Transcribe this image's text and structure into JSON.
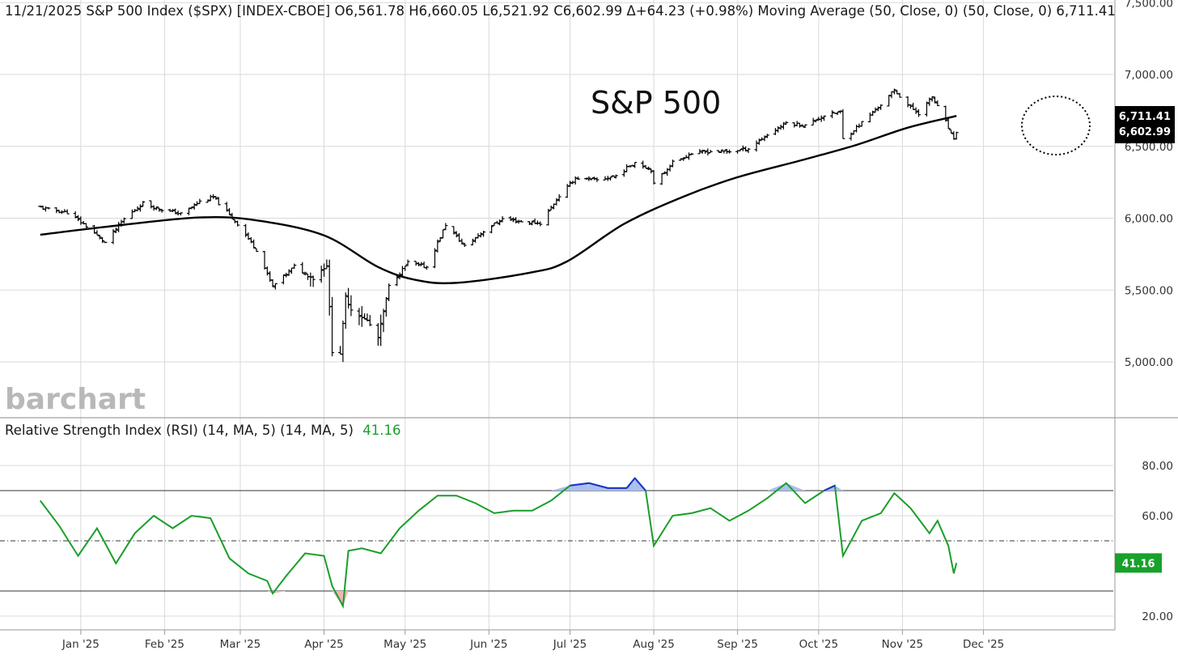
{
  "header": {
    "main": "11/21/2025 S&P 500 Index ($SPX) [INDEX-CBOE] O6,561.78 H6,660.05 L6,521.92 C6,602.99 Δ+64.23 (+0.98%) Moving Average (50, Close, 0)  (50, Close, 0) 6,711.41",
    "rsi_label": "Relative Strength Index (RSI) (14, MA, 5)  (14, MA, 5)",
    "rsi_value": "41.16"
  },
  "annotation": "S&P 500",
  "watermark": "barchart",
  "colors": {
    "rsi_line": "#1a9e2a",
    "overbought": "#1f2fd6",
    "overbought_fill": "#aabff0",
    "oversold": "#e21b1b",
    "oversold_fill": "#f2b5b5",
    "ma_line": "#000000",
    "bars": "#000000",
    "grid": "#d9d9d9"
  },
  "chart_data": [
    {
      "type": "ohlc",
      "title": "S&P 500 Index ($SPX)",
      "x_tick_labels": [
        "Jan '25",
        "Feb '25",
        "Mar '25",
        "Apr '25",
        "May '25",
        "Jun '25",
        "Jul '25",
        "Aug '25",
        "Sep '25",
        "Oct '25",
        "Nov '25",
        "Dec '25"
      ],
      "y_tick_labels": [
        "7,500.00",
        "7,000.00",
        "6,500.00",
        "6,000.00",
        "5,500.00",
        "5,000.00"
      ],
      "ylim": [
        4800,
        7500
      ],
      "grid": true,
      "series": [
        {
          "name": "S&P 500 Index ($SPX)",
          "x": [
            "2024-12-17",
            "2024-12-20",
            "2024-12-27",
            "2025-01-03",
            "2025-01-10",
            "2025-01-17",
            "2025-01-24",
            "2025-01-31",
            "2025-02-07",
            "2025-02-14",
            "2025-02-19",
            "2025-02-28",
            "2025-03-07",
            "2025-03-13",
            "2025-03-21",
            "2025-03-28",
            "2025-04-02",
            "2025-04-04",
            "2025-04-07",
            "2025-04-09",
            "2025-04-11",
            "2025-04-17",
            "2025-04-21",
            "2025-04-25",
            "2025-05-02",
            "2025-05-09",
            "2025-05-16",
            "2025-05-23",
            "2025-05-30",
            "2025-06-06",
            "2025-06-13",
            "2025-06-20",
            "2025-06-27",
            "2025-07-03",
            "2025-07-11",
            "2025-07-18",
            "2025-07-25",
            "2025-07-31",
            "2025-08-01",
            "2025-08-08",
            "2025-08-15",
            "2025-08-22",
            "2025-08-29",
            "2025-09-05",
            "2025-09-12",
            "2025-09-19",
            "2025-09-26",
            "2025-10-03",
            "2025-10-09",
            "2025-10-10",
            "2025-10-17",
            "2025-10-24",
            "2025-10-29",
            "2025-11-04",
            "2025-11-07",
            "2025-11-12",
            "2025-11-17",
            "2025-11-20",
            "2025-11-21"
          ],
          "close": [
            6075,
            6060,
            6040,
            5945,
            5830,
            5995,
            6105,
            6060,
            6030,
            6115,
            6145,
            5960,
            5780,
            5525,
            5665,
            5580,
            5675,
            5075,
            5060,
            5455,
            5365,
            5285,
            5170,
            5525,
            5690,
            5660,
            5955,
            5805,
            5910,
            5995,
            5975,
            5965,
            6155,
            6280,
            6265,
            6295,
            6390,
            6340,
            6235,
            6390,
            6450,
            6465,
            6465,
            6485,
            6580,
            6665,
            6645,
            6715,
            6740,
            6550,
            6665,
            6790,
            6890,
            6770,
            6730,
            6845,
            6670,
            6540,
            6603
          ]
        },
        {
          "name": "Moving Average (50, Close, 0)",
          "x": [
            "2024-12-17",
            "2025-01-15",
            "2025-02-14",
            "2025-03-07",
            "2025-04-01",
            "2025-04-21",
            "2025-05-05",
            "2025-05-20",
            "2025-06-16",
            "2025-06-30",
            "2025-07-21",
            "2025-08-12",
            "2025-09-01",
            "2025-09-25",
            "2025-10-15",
            "2025-11-03",
            "2025-11-21"
          ],
          "y": [
            5885,
            5950,
            6005,
            5985,
            5880,
            5660,
            5570,
            5550,
            5620,
            5700,
            5960,
            6150,
            6285,
            6405,
            6510,
            6630,
            6711.41
          ]
        }
      ],
      "last_price_tags": [
        {
          "value": "6,711.41"
        },
        {
          "value": "6,602.99"
        }
      ]
    },
    {
      "type": "line",
      "title": "Relative Strength Index (RSI) (14, MA, 5)",
      "y_tick_labels": [
        "80.00",
        "60.00",
        "20.00"
      ],
      "ylim": [
        20,
        80
      ],
      "reference_lines": [
        70,
        50,
        30
      ],
      "last_value": "41.16",
      "x": [
        "2024-12-17",
        "2024-12-24",
        "2024-12-31",
        "2025-01-07",
        "2025-01-14",
        "2025-01-21",
        "2025-01-28",
        "2025-02-04",
        "2025-02-11",
        "2025-02-18",
        "2025-02-25",
        "2025-03-04",
        "2025-03-11",
        "2025-03-13",
        "2025-03-18",
        "2025-03-25",
        "2025-04-01",
        "2025-04-04",
        "2025-04-08",
        "2025-04-10",
        "2025-04-15",
        "2025-04-22",
        "2025-04-29",
        "2025-05-06",
        "2025-05-13",
        "2025-05-20",
        "2025-05-27",
        "2025-06-03",
        "2025-06-10",
        "2025-06-17",
        "2025-06-24",
        "2025-07-01",
        "2025-07-08",
        "2025-07-15",
        "2025-07-22",
        "2025-07-25",
        "2025-07-29",
        "2025-08-01",
        "2025-08-08",
        "2025-08-15",
        "2025-08-22",
        "2025-08-29",
        "2025-09-05",
        "2025-09-12",
        "2025-09-19",
        "2025-09-26",
        "2025-10-03",
        "2025-10-07",
        "2025-10-10",
        "2025-10-17",
        "2025-10-24",
        "2025-10-29",
        "2025-11-04",
        "2025-11-11",
        "2025-11-14",
        "2025-11-18",
        "2025-11-20",
        "2025-11-21"
      ],
      "y": [
        66,
        56,
        44,
        55,
        41,
        53,
        60,
        55,
        60,
        59,
        43,
        37,
        34,
        29,
        36,
        45,
        44,
        32,
        24,
        46,
        47,
        45,
        55,
        62,
        68,
        68,
        65,
        61,
        62,
        62,
        66,
        72,
        73,
        71,
        71,
        75,
        70,
        48,
        60,
        61,
        63,
        58,
        62,
        67,
        73,
        65,
        70,
        72,
        44,
        58,
        61,
        69,
        63,
        53,
        58,
        48,
        37,
        41.16
      ]
    }
  ]
}
